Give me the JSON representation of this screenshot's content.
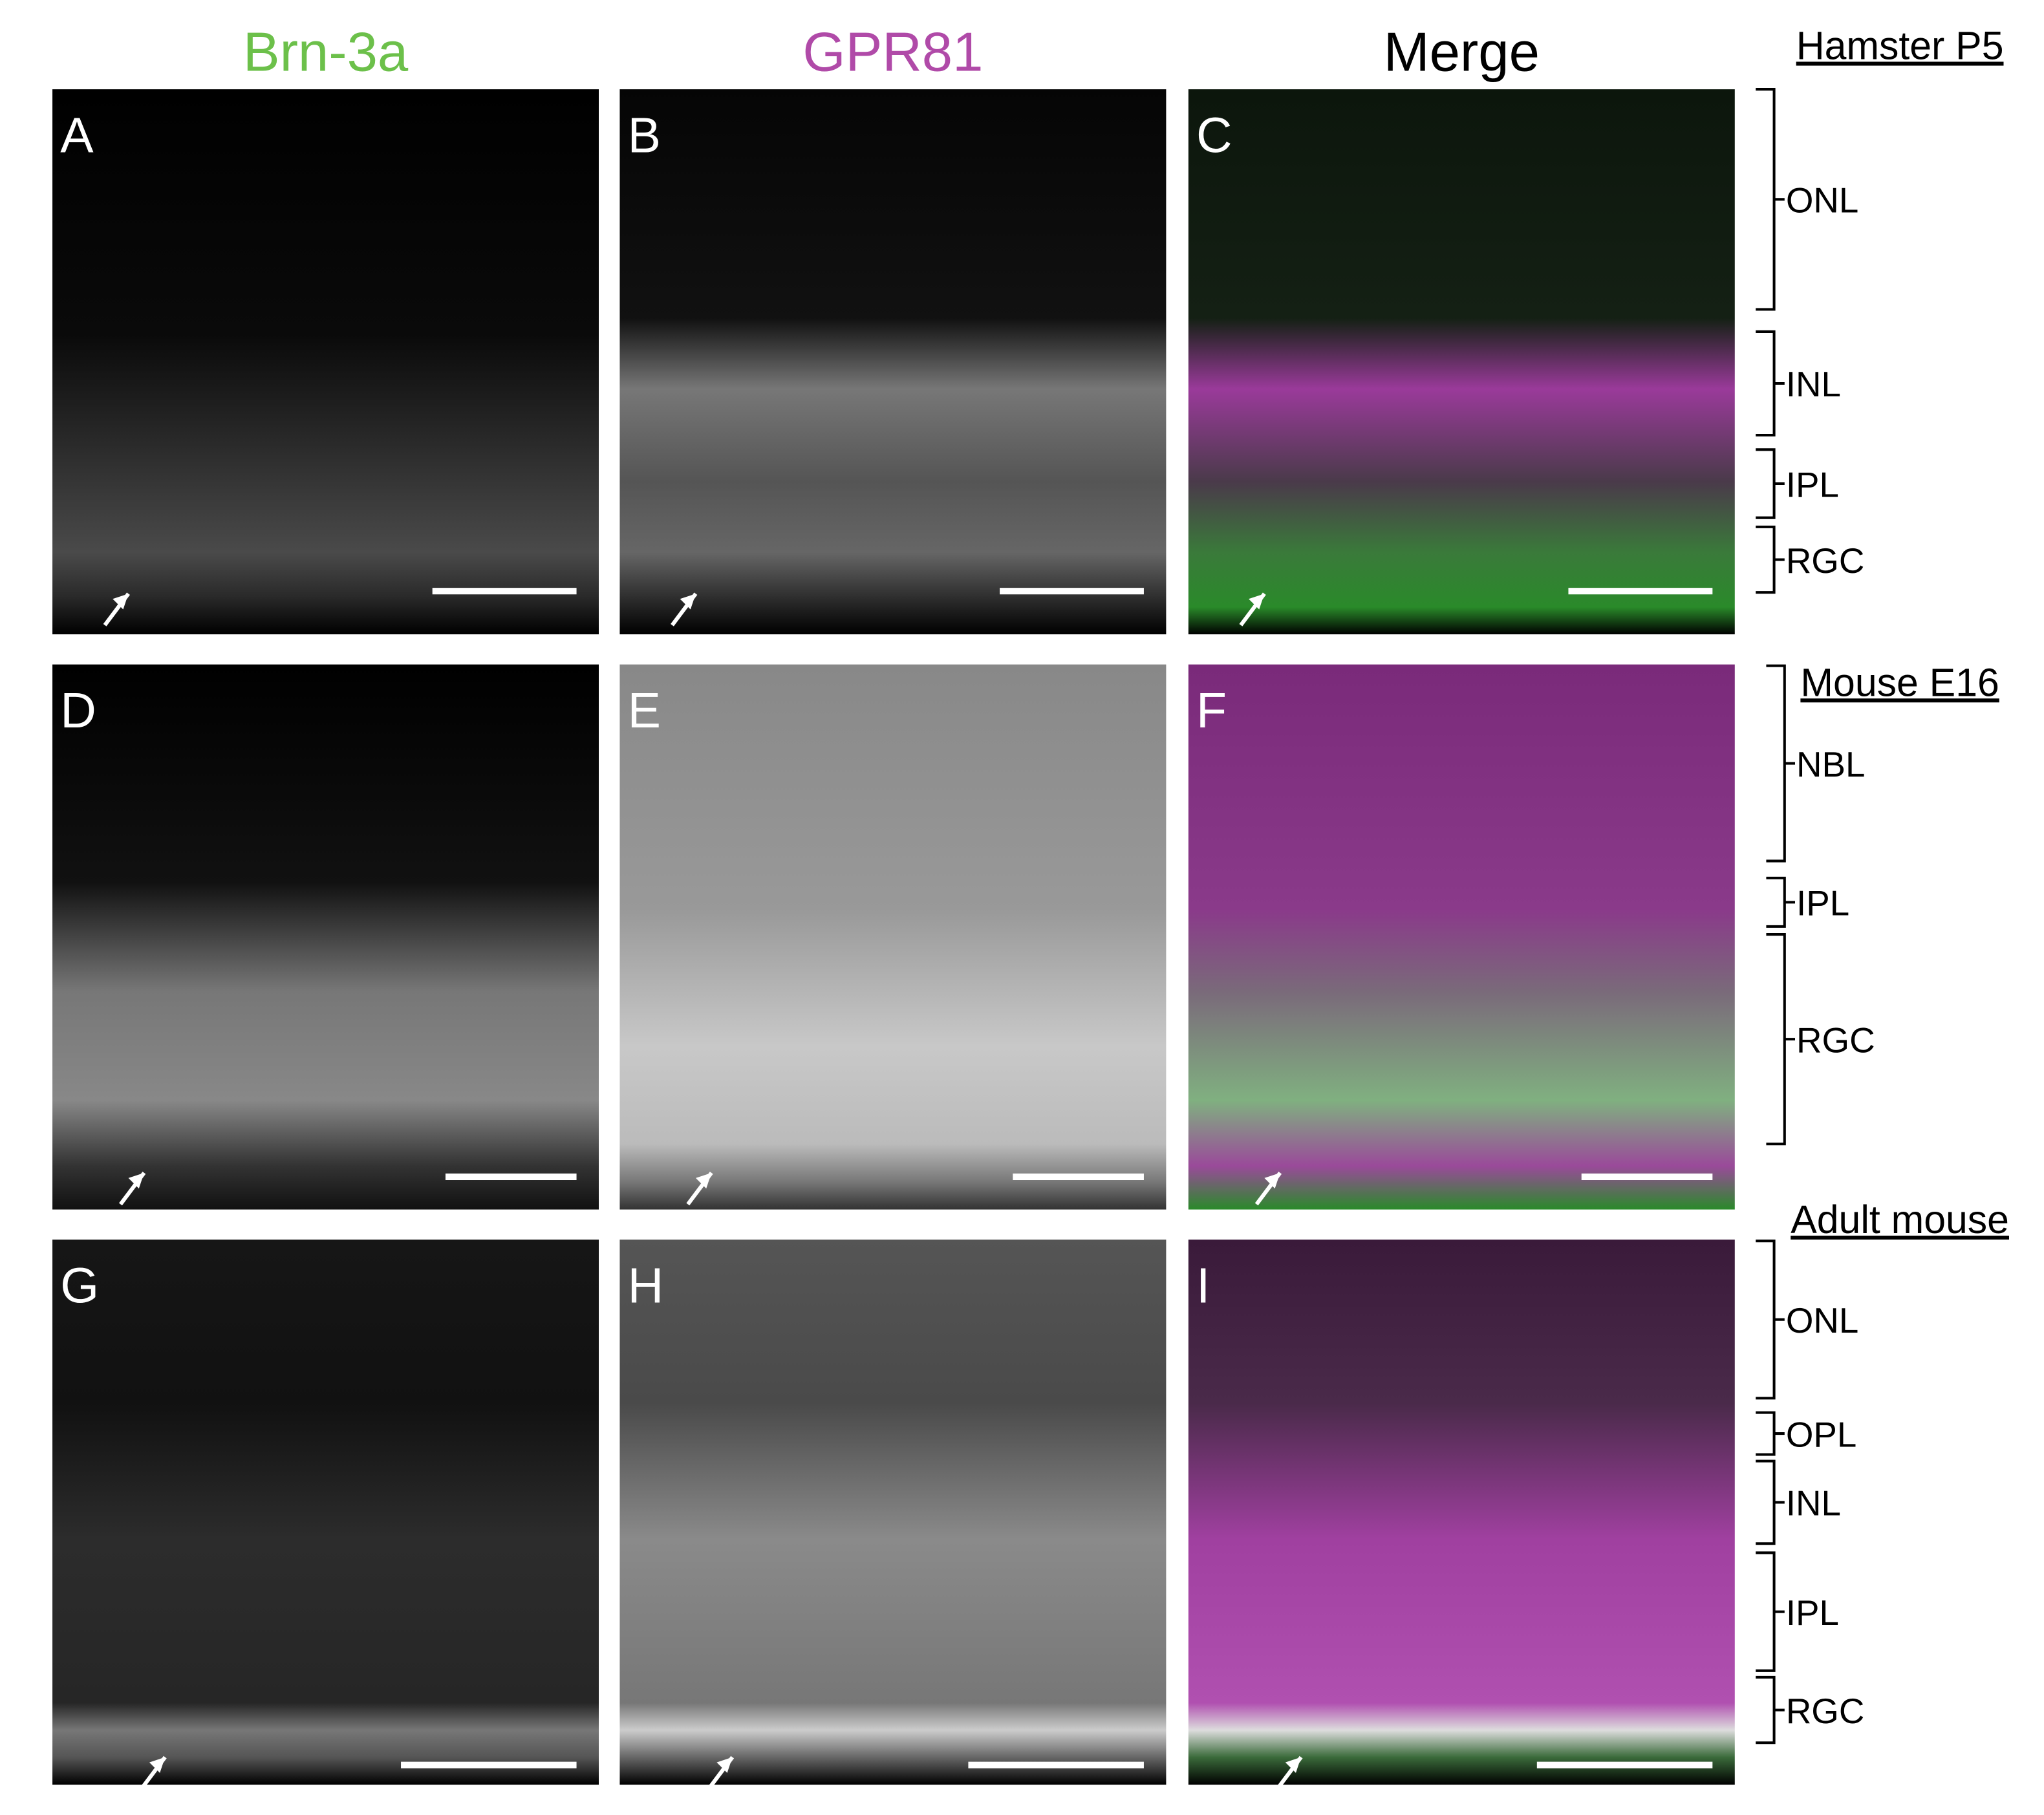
{
  "headers": [
    "Brn-3a",
    "GPR81",
    "Merge"
  ],
  "panels": [
    "A",
    "B",
    "C",
    "D",
    "E",
    "F",
    "G",
    "H",
    "I"
  ],
  "sections": [
    {
      "title": "Hamster P5",
      "layers": [
        "ONL",
        "INL",
        "IPL",
        "RGC"
      ]
    },
    {
      "title": "Mouse E16",
      "layers": [
        "NBL",
        "IPL",
        "RGC"
      ]
    },
    {
      "title": "Adult mouse",
      "layers": [
        "ONL",
        "OPL",
        "INL",
        "IPL",
        "RGC"
      ]
    }
  ]
}
